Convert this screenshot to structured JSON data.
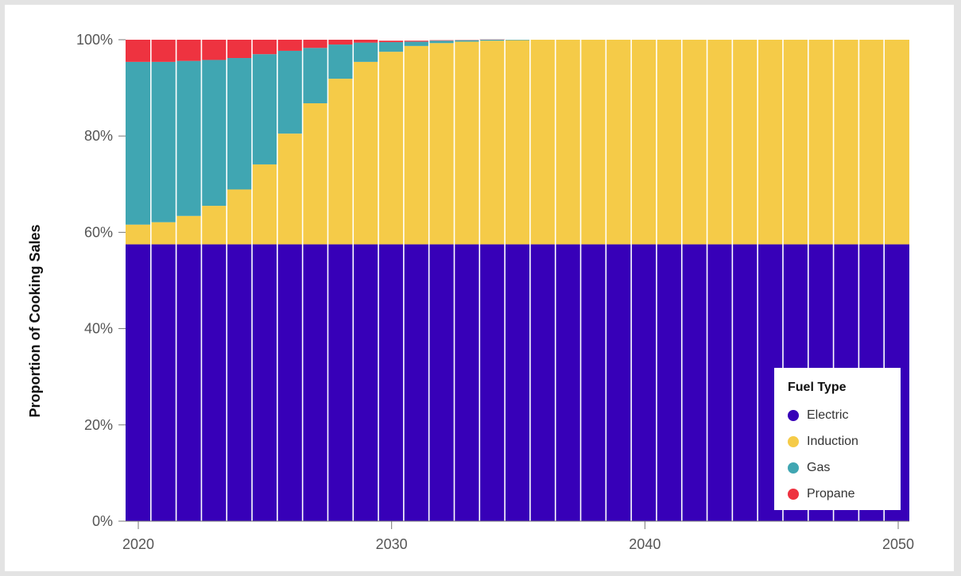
{
  "chart_data": {
    "type": "bar",
    "stacked": true,
    "title": "",
    "xlabel": "",
    "ylabel": "Proportion of Cooking Sales",
    "ylim": [
      0,
      100
    ],
    "y_format": "percent",
    "y_ticks": [
      "0%",
      "20%",
      "40%",
      "60%",
      "80%",
      "100%"
    ],
    "x_ticks": [
      "2020",
      "2030",
      "2040",
      "2050"
    ],
    "categories": [
      2020,
      2021,
      2022,
      2023,
      2024,
      2025,
      2026,
      2027,
      2028,
      2029,
      2030,
      2031,
      2032,
      2033,
      2034,
      2035,
      2036,
      2037,
      2038,
      2039,
      2040,
      2041,
      2042,
      2043,
      2044,
      2045,
      2046,
      2047,
      2048,
      2049,
      2050
    ],
    "legend": {
      "title": "Fuel Type",
      "placement": "bottom-right"
    },
    "series": [
      {
        "name": "Electric",
        "color": "#3700b8",
        "values": [
          57.5,
          57.5,
          57.5,
          57.5,
          57.5,
          57.5,
          57.5,
          57.5,
          57.5,
          57.5,
          57.5,
          57.5,
          57.5,
          57.5,
          57.5,
          57.5,
          57.5,
          57.5,
          57.5,
          57.5,
          57.5,
          57.5,
          57.5,
          57.5,
          57.5,
          57.5,
          57.5,
          57.5,
          57.5,
          57.5,
          57.5
        ]
      },
      {
        "name": "Induction",
        "color": "#f5cb48",
        "values": [
          4.1,
          4.6,
          5.9,
          8.0,
          11.4,
          16.6,
          23.0,
          29.3,
          34.4,
          37.9,
          40.0,
          41.2,
          41.8,
          42.1,
          42.3,
          42.4,
          42.5,
          42.5,
          42.5,
          42.5,
          42.5,
          42.5,
          42.5,
          42.5,
          42.5,
          42.5,
          42.5,
          42.5,
          42.5,
          42.5,
          42.5
        ]
      },
      {
        "name": "Gas",
        "color": "#40a6b2",
        "values": [
          33.8,
          33.3,
          32.2,
          30.3,
          27.3,
          22.9,
          17.2,
          11.5,
          7.1,
          4.0,
          2.0,
          0.9,
          0.5,
          0.3,
          0.2,
          0.1,
          0,
          0,
          0,
          0,
          0,
          0,
          0,
          0,
          0,
          0,
          0,
          0,
          0,
          0,
          0
        ]
      },
      {
        "name": "Propane",
        "color": "#ee3340",
        "values": [
          4.6,
          4.6,
          4.4,
          4.2,
          3.8,
          3.0,
          2.3,
          1.7,
          1.0,
          0.6,
          0.3,
          0.2,
          0.1,
          0.05,
          0.05,
          0,
          0,
          0,
          0,
          0,
          0,
          0,
          0,
          0,
          0,
          0,
          0,
          0,
          0,
          0,
          0
        ]
      }
    ]
  }
}
